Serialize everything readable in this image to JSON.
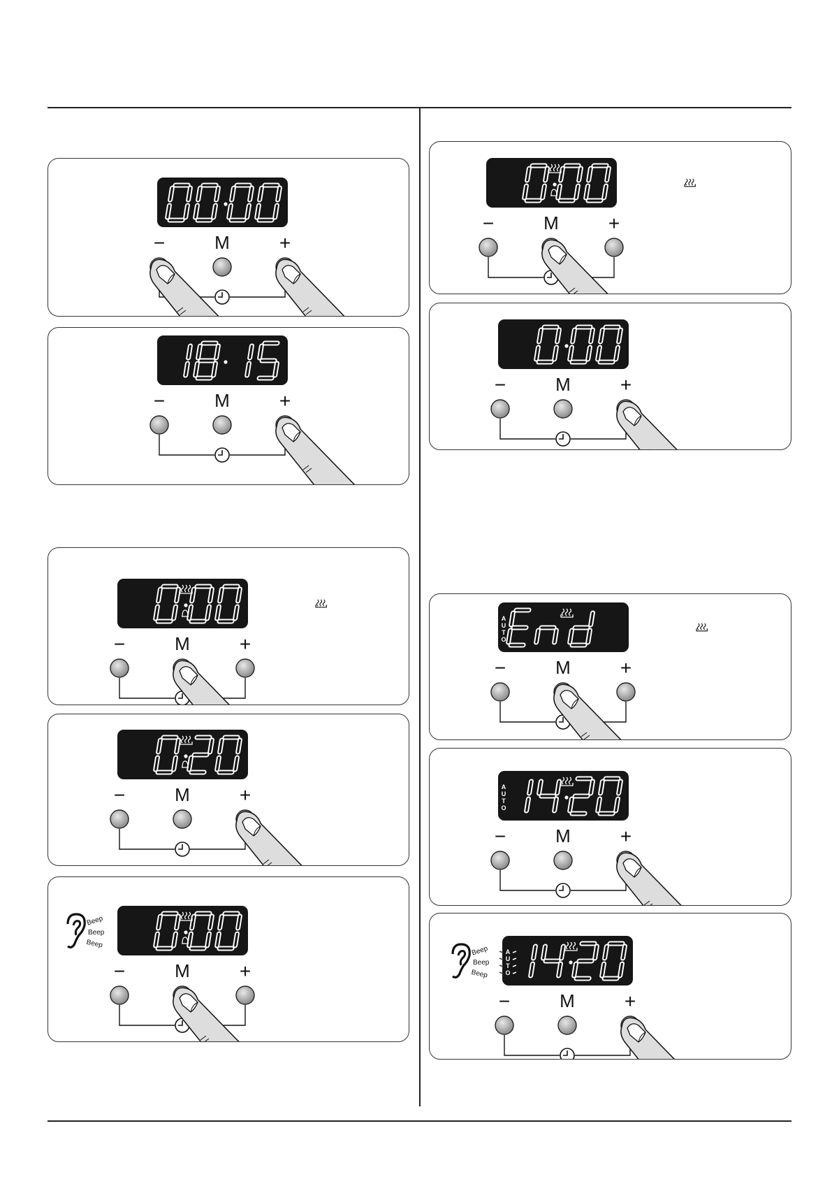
{
  "labels": {
    "minus": "−",
    "m": "M",
    "plus": "+"
  },
  "beep_words": [
    "Beep",
    "Beep",
    "Beep"
  ],
  "auto_label": "AUTO",
  "panels": [
    {
      "id": "p1",
      "display": {
        "left": "00",
        "right": "00",
        "sep": "dot"
      },
      "pressed": [
        "minus",
        "plus"
      ]
    },
    {
      "id": "p2",
      "display": {
        "left": "18",
        "right": "15",
        "sep": "dot"
      },
      "pressed": [
        "plus"
      ]
    },
    {
      "id": "p3",
      "display": {
        "left": " 0",
        "right": "00",
        "sep": "heat-bell"
      },
      "pressed": [
        "m"
      ],
      "side_icon": "heat-icon"
    },
    {
      "id": "p4",
      "display": {
        "left": " 0",
        "right": "20",
        "sep": "heat-bell"
      },
      "pressed": [
        "plus"
      ]
    },
    {
      "id": "p5",
      "display": {
        "left": " 0",
        "right": "00",
        "sep": "heat-bell"
      },
      "pressed": [
        "m"
      ],
      "beep": true
    },
    {
      "id": "p6",
      "display": {
        "left": " 0",
        "right": "00",
        "sep": "heat-bell"
      },
      "pressed": [
        "m"
      ],
      "side_icon": "heat-icon"
    },
    {
      "id": "p7",
      "display": {
        "left": " 0",
        "right": "00",
        "sep": "dot"
      },
      "pressed": [
        "plus"
      ]
    },
    {
      "id": "p8",
      "display": {
        "left": "En",
        "right": "d ",
        "sep": "heat"
      },
      "pressed": [
        "m"
      ],
      "side_icon": "heat-icon",
      "auto": "steady"
    },
    {
      "id": "p9",
      "display": {
        "left": "14",
        "right": "20",
        "sep": "heat-dot"
      },
      "pressed": [
        "plus"
      ],
      "auto": "steady"
    },
    {
      "id": "p10",
      "display": {
        "left": "14",
        "right": "20",
        "sep": "heat-dot"
      },
      "pressed": [
        "plus"
      ],
      "auto": "flashing",
      "beep": true
    }
  ]
}
